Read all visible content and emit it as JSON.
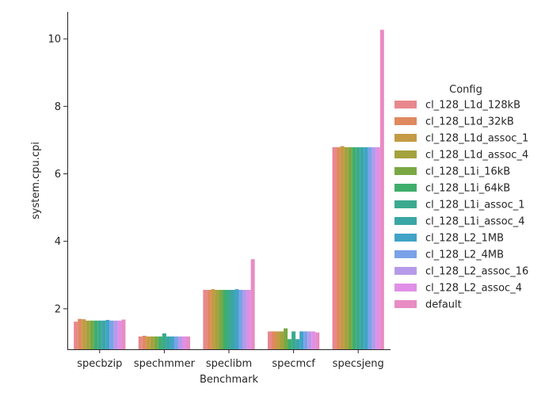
{
  "chart_data": {
    "type": "bar",
    "xlabel": "Benchmark",
    "ylabel": "system.cpu.cpi",
    "ylim": [
      0.8,
      10.8
    ],
    "yticks": [
      2,
      4,
      6,
      8,
      10
    ],
    "grid": false,
    "legend_title": "Config",
    "legend_position": "right",
    "categories": [
      "specbzip",
      "spechmmer",
      "speclibm",
      "specmcf",
      "specsjeng"
    ],
    "series": [
      {
        "name": "cl_128_L1d_128kB",
        "color": "#e8888e",
        "values": [
          1.62,
          1.18,
          2.56,
          1.33,
          6.79
        ]
      },
      {
        "name": "cl_128_L1d_32kB",
        "color": "#e0895f",
        "values": [
          1.7,
          1.2,
          2.56,
          1.33,
          6.79
        ]
      },
      {
        "name": "cl_128_L1d_assoc_1",
        "color": "#c49a45",
        "values": [
          1.69,
          1.18,
          2.58,
          1.33,
          6.82
        ]
      },
      {
        "name": "cl_128_L1d_assoc_4",
        "color": "#a4a23e",
        "values": [
          1.65,
          1.18,
          2.56,
          1.33,
          6.79
        ]
      },
      {
        "name": "cl_128_L1i_16kB",
        "color": "#79a843",
        "values": [
          1.65,
          1.18,
          2.56,
          1.42,
          6.79
        ]
      },
      {
        "name": "cl_128_L1i_64kB",
        "color": "#3fae6b",
        "values": [
          1.65,
          1.18,
          2.56,
          1.1,
          6.79
        ]
      },
      {
        "name": "cl_128_L1i_assoc_1",
        "color": "#3ba98f",
        "values": [
          1.65,
          1.27,
          2.56,
          1.33,
          6.79
        ]
      },
      {
        "name": "cl_128_L1i_assoc_4",
        "color": "#3aa6a6",
        "values": [
          1.65,
          1.18,
          2.56,
          1.1,
          6.79
        ]
      },
      {
        "name": "cl_128_L2_1MB",
        "color": "#40a3c7",
        "values": [
          1.67,
          1.18,
          2.58,
          1.33,
          6.79
        ]
      },
      {
        "name": "cl_128_L2_4MB",
        "color": "#7aa2e8",
        "values": [
          1.65,
          1.18,
          2.56,
          1.33,
          6.79
        ]
      },
      {
        "name": "cl_128_L2_assoc_16",
        "color": "#b69ae9",
        "values": [
          1.65,
          1.18,
          2.56,
          1.33,
          6.79
        ]
      },
      {
        "name": "cl_128_L2_assoc_4",
        "color": "#e08fe6",
        "values": [
          1.65,
          1.18,
          2.56,
          1.33,
          6.79
        ]
      },
      {
        "name": "default",
        "color": "#e88cc4",
        "values": [
          1.68,
          1.18,
          3.47,
          1.3,
          10.27
        ]
      }
    ]
  }
}
